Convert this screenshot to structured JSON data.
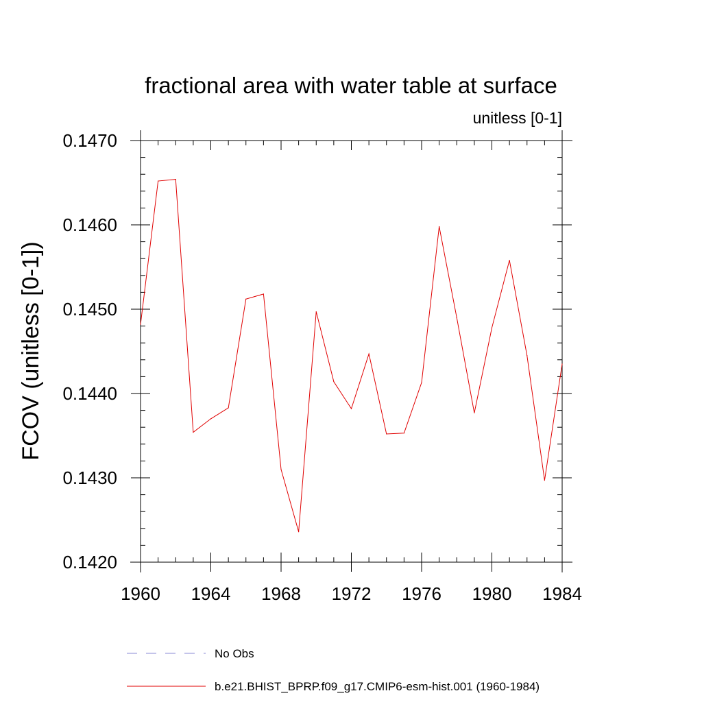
{
  "chart_data": {
    "type": "line",
    "title": "fractional area with water table at surface",
    "subtitle": "unitless [0-1]",
    "xlabel": "",
    "ylabel": "FCOV  (unitless [0-1])",
    "xlim": [
      1960,
      1984
    ],
    "ylim": [
      0.142,
      0.147
    ],
    "x_ticks": [
      1960,
      1964,
      1968,
      1972,
      1976,
      1980,
      1984
    ],
    "x_tick_labels": [
      "1960",
      "1964",
      "1968",
      "1972",
      "1976",
      "1980",
      "1984"
    ],
    "y_ticks": [
      0.142,
      0.143,
      0.144,
      0.145,
      0.146,
      0.147
    ],
    "y_tick_labels": [
      "0.1420",
      "0.1430",
      "0.1440",
      "0.1450",
      "0.1460",
      "0.1470"
    ],
    "grid": false,
    "legend_position": "bottom",
    "series": [
      {
        "name": "No Obs",
        "style": "dashed",
        "color": "#8a8ad6",
        "x": [],
        "values": []
      },
      {
        "name": "b.e21.BHIST_BPRP.f09_g17.CMIP6-esm-hist.001 (1960-1984)",
        "style": "solid",
        "color": "#e00000",
        "x": [
          1960,
          1961,
          1962,
          1963,
          1964,
          1965,
          1966,
          1967,
          1968,
          1969,
          1970,
          1971,
          1972,
          1973,
          1974,
          1975,
          1976,
          1977,
          1978,
          1979,
          1980,
          1981,
          1982,
          1983,
          1984
        ],
        "values": [
          0.14482,
          0.14652,
          0.14654,
          0.14354,
          0.1437,
          0.14383,
          0.14512,
          0.14518,
          0.1431,
          0.14236,
          0.14497,
          0.14414,
          0.14382,
          0.14447,
          0.14352,
          0.14353,
          0.14413,
          0.14598,
          0.1449,
          0.14377,
          0.14478,
          0.14558,
          0.14445,
          0.14297,
          0.14435
        ]
      }
    ]
  }
}
